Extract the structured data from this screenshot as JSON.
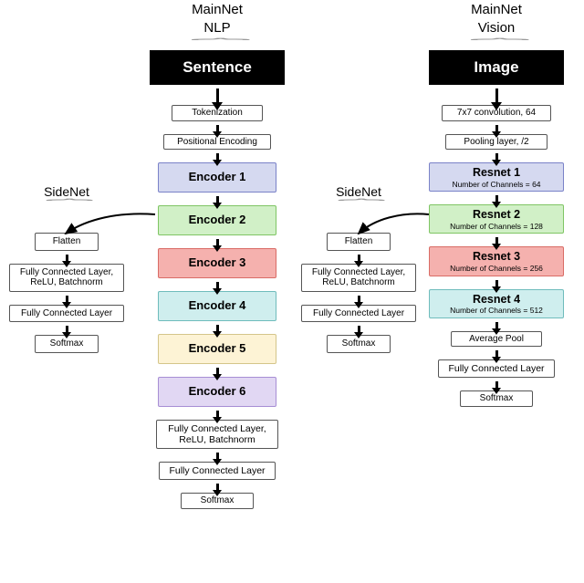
{
  "nlp": {
    "header_top": "MainNet",
    "header_sub": "NLP",
    "input": "Sentence",
    "pre1": "Tokenization",
    "pre2": "Positional Encoding",
    "encoders": [
      {
        "label": "Encoder 1",
        "bg": "#d5d9f0",
        "border": "#7a82c8"
      },
      {
        "label": "Encoder 2",
        "bg": "#d1f0c7",
        "border": "#7fc564"
      },
      {
        "label": "Encoder 3",
        "bg": "#f5b1ae",
        "border": "#d96c66"
      },
      {
        "label": "Encoder 4",
        "bg": "#cfeeee",
        "border": "#6fbcbc"
      },
      {
        "label": "Encoder 5",
        "bg": "#fdf3d5",
        "border": "#d4c58a"
      },
      {
        "label": "Encoder 6",
        "bg": "#e1d7f3",
        "border": "#a78ed4"
      }
    ],
    "post1": "Fully Connected Layer, ReLU, Batchnorm",
    "post2": "Fully Connected Layer",
    "post3": "Softmax"
  },
  "vision": {
    "header_top": "MainNet",
    "header_sub": "Vision",
    "input": "Image",
    "pre1": "7x7 convolution, 64",
    "pre2": "Pooling layer, /2",
    "resnets": [
      {
        "label": "Resnet 1",
        "sub": "Number of Channels = 64",
        "bg": "#d5d9f0",
        "border": "#7a82c8"
      },
      {
        "label": "Resnet 2",
        "sub": "Number of Channels = 128",
        "bg": "#d1f0c7",
        "border": "#7fc564"
      },
      {
        "label": "Resnet 3",
        "sub": "Number of Channels = 256",
        "bg": "#f5b1ae",
        "border": "#d96c66"
      },
      {
        "label": "Resnet 4",
        "sub": "Number of Channels = 512",
        "bg": "#cfeeee",
        "border": "#6fbcbc"
      }
    ],
    "post1": "Average Pool",
    "post2": "Fully Connected Layer",
    "post3": "Softmax"
  },
  "sidenet": {
    "title": "SideNet",
    "s1": "Flatten",
    "s2": "Fully Connected Layer, ReLU, Batchnorm",
    "s3": "Fully Connected Layer",
    "s4": "Softmax"
  }
}
